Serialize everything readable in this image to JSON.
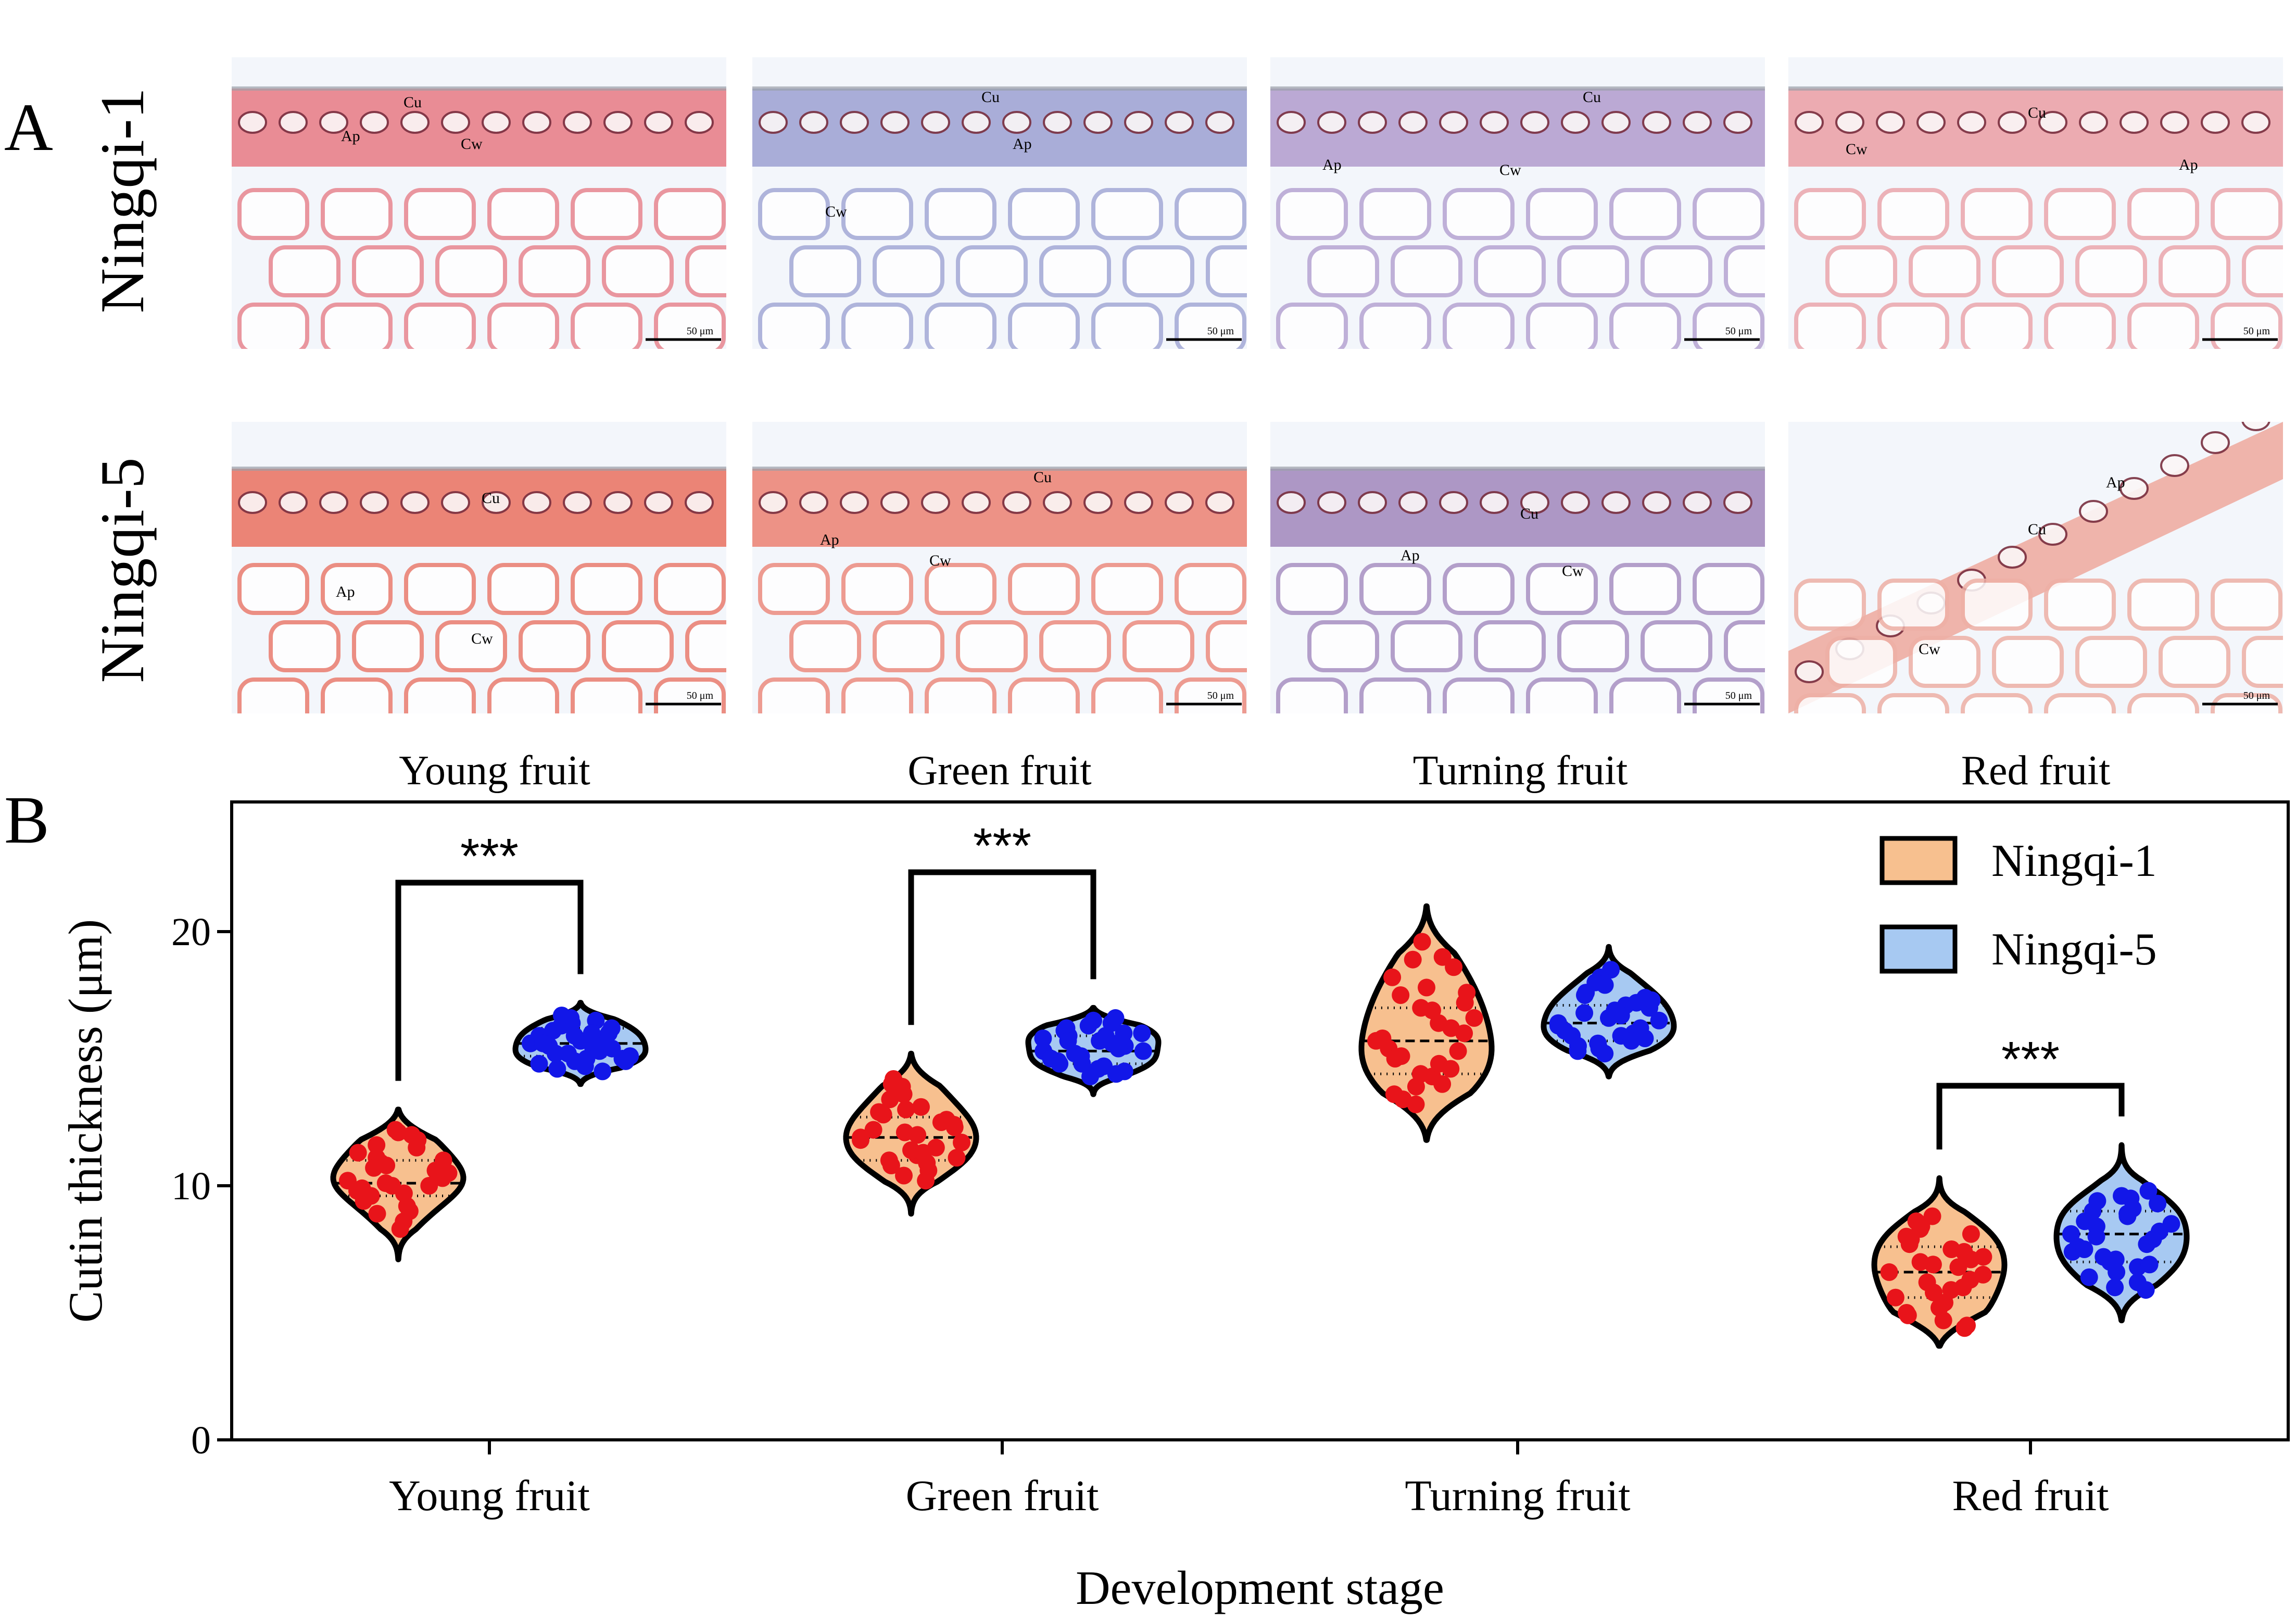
{
  "panel_a": {
    "letter": "A",
    "rows": [
      "Ningqi-1",
      "Ningqi-5"
    ],
    "stages": [
      "Young fruit",
      "Green fruit",
      "Turning fruit",
      "Red fruit"
    ],
    "scale_bar": "50 μm",
    "markers": {
      "cu": "Cu",
      "ap": "Ap",
      "cw": "Cw"
    },
    "stains": {
      "row1": [
        "#e8868f",
        "#a4a9d6",
        "#b7a4d2",
        "#eba7ad"
      ],
      "row2": [
        "#ea7d6f",
        "#ec8c7f",
        "#a991c2",
        "#eeb0a6"
      ]
    }
  },
  "panel_b": {
    "letter": "B"
  },
  "chart_data": {
    "type": "violin",
    "xlabel": "Development stage",
    "ylabel": "Cutin thickness (μm)",
    "ylim": [
      0,
      25
    ],
    "yticks": [
      0,
      10,
      20
    ],
    "categories": [
      "Young fruit",
      "Green fruit",
      "Turning fruit",
      "Red fruit"
    ],
    "legend_position": "top-right",
    "series": [
      {
        "name": "Ningqi-1",
        "fill": "#f7c08f",
        "point_color": "#e8141a",
        "median": [
          10.1,
          11.9,
          15.7,
          6.6
        ],
        "q1": [
          9.6,
          11.0,
          14.4,
          5.6
        ],
        "q3": [
          11.0,
          12.7,
          17.0,
          7.6
        ],
        "min": [
          7.1,
          8.9,
          11.8,
          3.7
        ],
        "max": [
          13.0,
          15.2,
          21.0,
          10.3
        ],
        "points": [
          [
            10.2,
            11.6,
            10.8,
            9.7,
            12.0,
            10.4,
            9.4,
            11.1,
            10.0,
            8.6,
            11.8,
            10.5,
            9.9,
            10.9,
            12.1,
            9.0,
            10.6,
            11.3,
            9.6,
            10.1,
            8.3,
            11.5,
            10.3,
            9.8,
            10.7,
            12.2,
            9.2,
            10.0,
            11.0,
            8.9
          ],
          [
            11.9,
            12.8,
            13.6,
            11.2,
            10.6,
            12.4,
            14.0,
            11.0,
            12.1,
            13.1,
            10.2,
            11.7,
            12.9,
            13.9,
            11.4,
            10.9,
            12.6,
            11.8,
            13.4,
            10.4,
            12.0,
            11.5,
            12.3,
            14.2,
            10.8,
            13.0,
            11.3,
            12.5,
            11.1,
            12.2
          ],
          [
            15.7,
            17.5,
            19.6,
            14.3,
            16.2,
            18.6,
            13.6,
            15.1,
            17.0,
            14.8,
            19.0,
            16.6,
            15.4,
            13.2,
            17.8,
            14.0,
            16.0,
            18.2,
            15.0,
            13.9,
            16.9,
            14.6,
            17.2,
            15.8,
            18.9,
            14.4,
            16.4,
            15.3,
            17.6,
            13.4
          ],
          [
            6.6,
            7.9,
            8.8,
            5.4,
            6.0,
            7.2,
            4.9,
            8.3,
            5.8,
            7.5,
            6.3,
            4.5,
            8.6,
            7.0,
            5.2,
            6.8,
            8.1,
            5.6,
            7.7,
            6.2,
            4.7,
            7.4,
            6.5,
            5.0,
            8.4,
            6.9,
            5.9,
            7.1,
            4.4,
            8.0
          ]
        ]
      },
      {
        "name": "Ningqi-5",
        "fill": "#a7c9f2",
        "point_color": "#1217e8",
        "median": [
          15.6,
          15.3,
          16.4,
          8.1
        ],
        "q1": [
          15.1,
          14.8,
          15.7,
          7.0
        ],
        "q3": [
          16.2,
          15.9,
          17.1,
          9.0
        ],
        "min": [
          14.0,
          13.6,
          14.3,
          4.7
        ],
        "max": [
          17.2,
          17.0,
          19.4,
          11.6
        ],
        "points": [
          [
            15.6,
            16.1,
            15.2,
            14.7,
            16.5,
            15.0,
            15.9,
            16.3,
            14.9,
            15.4,
            16.0,
            15.1,
            14.6,
            16.6,
            15.7,
            15.3,
            16.2,
            14.8,
            15.5,
            16.4,
            15.0,
            15.8,
            14.5,
            16.7,
            15.2,
            15.9,
            16.0,
            15.4,
            14.9,
            15.6
          ],
          [
            15.3,
            16.1,
            14.8,
            15.7,
            16.4,
            14.5,
            15.0,
            15.9,
            16.3,
            14.7,
            15.5,
            16.0,
            14.9,
            15.2,
            16.5,
            15.6,
            14.4,
            15.8,
            16.2,
            15.1,
            14.6,
            15.4,
            16.6,
            15.0,
            15.7,
            14.3,
            15.9,
            16.0,
            15.3,
            14.8
          ],
          [
            16.4,
            17.5,
            15.6,
            18.5,
            16.0,
            17.0,
            15.3,
            16.8,
            17.9,
            15.9,
            16.2,
            17.3,
            15.5,
            18.2,
            16.6,
            17.1,
            15.8,
            16.3,
            17.6,
            15.4,
            16.9,
            15.7,
            17.4,
            16.1,
            18.0,
            15.2,
            16.7,
            17.2,
            16.5,
            15.9
          ],
          [
            8.1,
            9.4,
            7.0,
            8.8,
            6.2,
            9.8,
            7.6,
            8.4,
            6.6,
            9.1,
            7.9,
            5.9,
            8.6,
            7.2,
            9.6,
            6.8,
            8.2,
            7.4,
            9.0,
            6.0,
            8.9,
            7.7,
            9.3,
            6.4,
            8.0,
            7.1,
            9.5,
            6.9,
            8.5,
            7.5
          ]
        ]
      }
    ],
    "significance": [
      {
        "category": "Young fruit",
        "label": "***"
      },
      {
        "category": "Green fruit",
        "label": "***"
      },
      {
        "category": "Red fruit",
        "label": "***"
      }
    ]
  }
}
